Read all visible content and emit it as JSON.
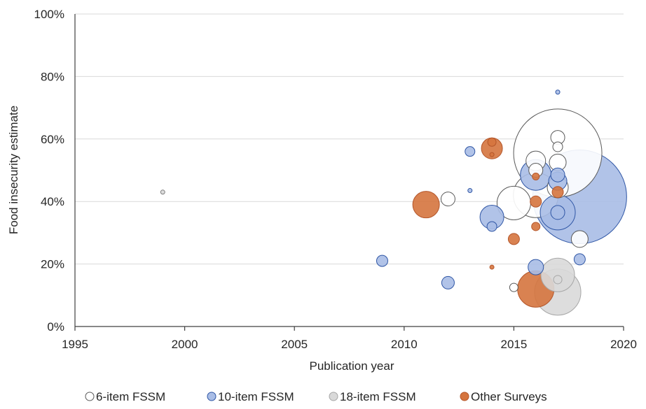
{
  "chart_data": {
    "type": "scatter",
    "variant": "bubble",
    "title": "",
    "xlabel": "Publication year",
    "ylabel": "Food insecurity estimate",
    "xlim": [
      1995,
      2020
    ],
    "ylim": [
      0,
      100
    ],
    "x_ticks": [
      1995,
      2000,
      2005,
      2010,
      2015,
      2020
    ],
    "y_ticks": [
      0,
      20,
      40,
      60,
      80,
      100
    ],
    "y_tick_labels": [
      "0%",
      "20%",
      "40%",
      "60%",
      "80%",
      "100%"
    ],
    "grid": "horizontal",
    "legend_position": "bottom",
    "series": [
      {
        "name": "6-item FSSM",
        "fill": "#ffffff",
        "stroke": "#595959",
        "points": [
          {
            "x": 2012,
            "y": 40.8,
            "r": 10
          },
          {
            "x": 2015,
            "y": 39.5,
            "r": 24
          },
          {
            "x": 2015,
            "y": 12.5,
            "r": 6
          },
          {
            "x": 2016,
            "y": 42,
            "r": 32
          },
          {
            "x": 2016,
            "y": 53,
            "r": 14
          },
          {
            "x": 2016,
            "y": 50,
            "r": 10
          },
          {
            "x": 2017,
            "y": 55.5,
            "r": 63
          },
          {
            "x": 2017,
            "y": 60.5,
            "r": 10
          },
          {
            "x": 2017,
            "y": 57.5,
            "r": 7
          },
          {
            "x": 2017,
            "y": 52.5,
            "r": 12
          },
          {
            "x": 2017,
            "y": 44.5,
            "r": 15
          },
          {
            "x": 2018,
            "y": 28,
            "r": 12
          }
        ]
      },
      {
        "name": "10-item FSSM",
        "fill": "#a9bde6",
        "stroke": "#2f56a5",
        "points": [
          {
            "x": 1999,
            "y": 43,
            "r": 3,
            "fill": "#d9d9d9",
            "stroke": "#7f7f7f"
          },
          {
            "x": 2009,
            "y": 21,
            "r": 8
          },
          {
            "x": 2012,
            "y": 14,
            "r": 9
          },
          {
            "x": 2013,
            "y": 56,
            "r": 7
          },
          {
            "x": 2013,
            "y": 43.5,
            "r": 3
          },
          {
            "x": 2014,
            "y": 35,
            "r": 17
          },
          {
            "x": 2014,
            "y": 32,
            "r": 7
          },
          {
            "x": 2016,
            "y": 48.5,
            "r": 22
          },
          {
            "x": 2016,
            "y": 19,
            "r": 11
          },
          {
            "x": 2017,
            "y": 75,
            "r": 3
          },
          {
            "x": 2017,
            "y": 48.5,
            "r": 10
          },
          {
            "x": 2017,
            "y": 46.5,
            "r": 13
          },
          {
            "x": 2017,
            "y": 36.5,
            "r": 25
          },
          {
            "x": 2017,
            "y": 36.5,
            "r": 10
          },
          {
            "x": 2018,
            "y": 41.5,
            "r": 67
          },
          {
            "x": 2018,
            "y": 21.5,
            "r": 8
          }
        ]
      },
      {
        "name": "18-item FSSM",
        "fill": "#d9d9d9",
        "stroke": "#a6a6a6",
        "points": [
          {
            "x": 2017,
            "y": 11,
            "r": 33
          },
          {
            "x": 2017,
            "y": 16.5,
            "r": 24
          },
          {
            "x": 2017,
            "y": 15,
            "r": 6
          }
        ]
      },
      {
        "name": "Other Surveys",
        "fill": "#d5743e",
        "stroke": "#b4562a",
        "points": [
          {
            "x": 2011,
            "y": 39,
            "r": 19
          },
          {
            "x": 2014,
            "y": 57,
            "r": 15
          },
          {
            "x": 2014,
            "y": 59,
            "r": 6
          },
          {
            "x": 2014,
            "y": 55,
            "r": 3
          },
          {
            "x": 2014,
            "y": 19,
            "r": 3
          },
          {
            "x": 2015,
            "y": 28,
            "r": 8
          },
          {
            "x": 2016,
            "y": 12,
            "r": 26
          },
          {
            "x": 2016,
            "y": 48,
            "r": 5
          },
          {
            "x": 2016,
            "y": 40,
            "r": 8
          },
          {
            "x": 2016,
            "y": 32,
            "r": 6
          },
          {
            "x": 2017,
            "y": 43,
            "r": 8
          }
        ]
      }
    ]
  }
}
